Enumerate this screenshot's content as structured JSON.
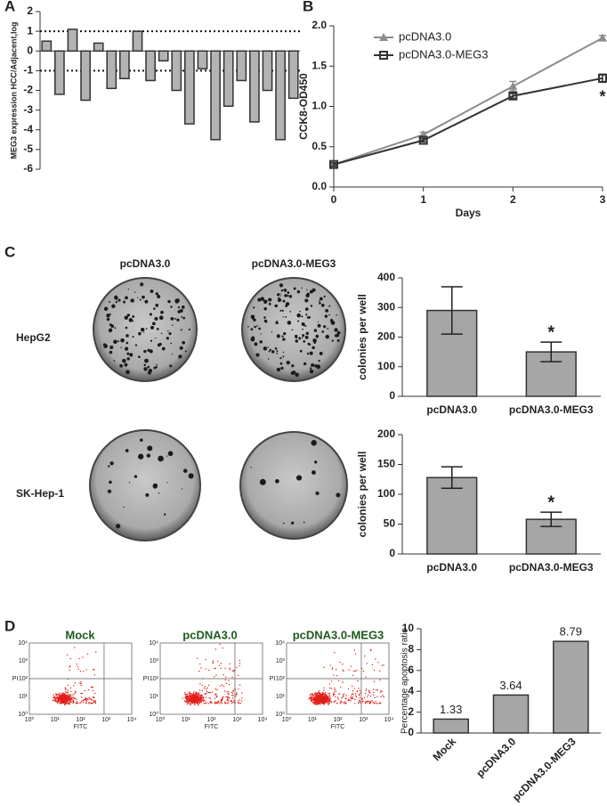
{
  "panel_labels": [
    "A",
    "B",
    "C",
    "D"
  ],
  "chart_data": [
    {
      "type": "bar",
      "y_label": "MEG3 expression HCC/Adjacent,log",
      "values": [
        0.5,
        -2.2,
        1.1,
        -2.5,
        0.4,
        -1.9,
        -1.4,
        1.0,
        -1.5,
        -0.5,
        -2.0,
        -3.7,
        -0.9,
        -4.5,
        -2.8,
        -1.5,
        -3.6,
        -2.0,
        -4.5,
        -2.4
      ],
      "color": "#b3b3b3",
      "ylim": [
        -6,
        2
      ],
      "yticks": [
        2,
        1,
        0,
        -1,
        -2,
        -3,
        -4,
        -5,
        -6
      ],
      "reference_lines": [
        1,
        -1
      ]
    },
    {
      "type": "line",
      "x_label": "Days",
      "y_label": "CCK8-OD450",
      "x": [
        0,
        1,
        2,
        3
      ],
      "xlim": [
        0,
        3
      ],
      "xticks": [
        0,
        1,
        2,
        3
      ],
      "ylim": [
        0,
        2
      ],
      "yticks": [
        {
          "value": 0,
          "label": "0.0"
        },
        {
          "value": 0.5,
          "label": "0.5"
        },
        {
          "value": 1,
          "label": "1.0"
        },
        {
          "value": 1.5,
          "label": "1.5"
        },
        {
          "value": 2,
          "label": "2.0"
        }
      ],
      "series": [
        {
          "name": "pcDNA3.0",
          "color": "#8c8c8c",
          "marker": "triangle",
          "values": [
            0.28,
            0.65,
            1.25,
            1.85
          ],
          "errors": [
            0.02,
            0.03,
            0.06,
            0.03
          ]
        },
        {
          "name": "pcDNA3.0-MEG3",
          "color": "#333333",
          "marker": "square",
          "values": [
            0.28,
            0.58,
            1.13,
            1.35
          ],
          "errors": [
            0.02,
            0.02,
            0.03,
            0.05
          ]
        }
      ],
      "annotation": "*"
    },
    {
      "type": "bar",
      "y_label": "colonies per well",
      "categories": [
        "pcDNA3.0",
        "pcDNA3.0-MEG3"
      ],
      "values": [
        290,
        150
      ],
      "errors": [
        80,
        33
      ],
      "color": "#a6a6a6",
      "ylim": [
        0,
        400
      ],
      "yticks": [
        0,
        100,
        200,
        300,
        400
      ],
      "annotation": "*"
    },
    {
      "type": "bar",
      "y_label": "colonies per well",
      "categories": [
        "pcDNA3.0",
        "pcDNA3.0-MEG3"
      ],
      "values": [
        128,
        58
      ],
      "errors": [
        18,
        12
      ],
      "color": "#a6a6a6",
      "ylim": [
        0,
        200
      ],
      "yticks": [
        0,
        50,
        100,
        150,
        200
      ],
      "annotation": "*"
    },
    {
      "type": "bar",
      "y_label": "Percentage apoptosis ratio",
      "categories": [
        "Mock",
        "pcDNA3.0",
        "pcDNA3.0-MEG3"
      ],
      "values": [
        1.33,
        3.64,
        8.79
      ],
      "color": "#a6a6a6",
      "ylim": [
        0,
        10
      ],
      "yticks": [
        0,
        2,
        4,
        6,
        8,
        10
      ],
      "show_values": true
    }
  ],
  "colony_panel": {
    "columns": [
      "pcDNA3.0",
      "pcDNA3.0-MEG3"
    ],
    "rows": [
      "HepG2",
      "SK-Hep-1"
    ]
  },
  "flow_panel": {
    "titles": [
      "Mock",
      "pcDNA3.0",
      "pcDNA3.0-MEG3"
    ],
    "x_label": "FITC",
    "y_label": "PI",
    "ticks": [
      "10⁰",
      "10¹",
      "10²",
      "10³",
      "10⁴"
    ]
  }
}
